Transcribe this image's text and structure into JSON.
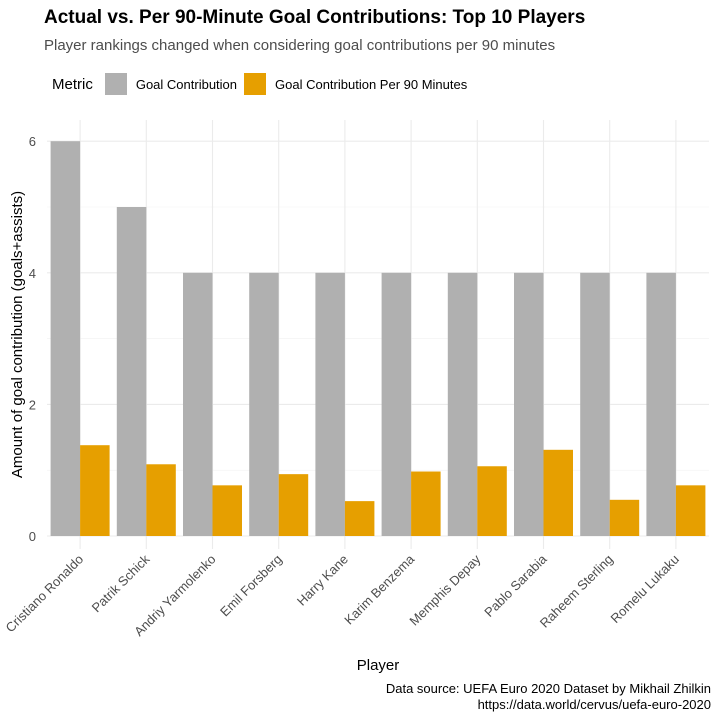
{
  "chart_data": {
    "type": "bar",
    "title": "Actual vs. Per 90-Minute Goal Contributions: Top 10 Players",
    "subtitle": "Player rankings changed when considering goal contributions per 90 minutes",
    "xlabel": "Player",
    "ylabel": "Amount of goal contribution (goals+assists)",
    "legend_title": "Metric",
    "legend_position": "top-left",
    "grid": true,
    "ylim": [
      0,
      6.2
    ],
    "yticks": [
      0,
      2,
      4,
      6
    ],
    "categories": [
      "Cristiano Ronaldo",
      "Patrik Schick",
      "Andriy Yarmolenko",
      "Emil Forsberg",
      "Harry Kane",
      "Karim Benzema",
      "Memphis Depay",
      "Pablo Sarabia",
      "Raheem Sterling",
      "Romelu Lukaku"
    ],
    "series": [
      {
        "name": "Goal Contribution",
        "color": "#B0B0B0",
        "values": [
          6,
          5,
          4,
          4,
          4,
          4,
          4,
          4,
          4,
          4
        ]
      },
      {
        "name": "Goal Contribution Per 90 Minutes",
        "color": "#E69F00",
        "values": [
          1.38,
          1.09,
          0.77,
          0.94,
          0.53,
          0.98,
          1.06,
          1.31,
          0.55,
          0.77
        ]
      }
    ],
    "caption": [
      "Data source: UEFA Euro 2020 Dataset by Mikhail Zhilkin",
      "https://data.world/cervus/uefa-euro-2020"
    ]
  }
}
